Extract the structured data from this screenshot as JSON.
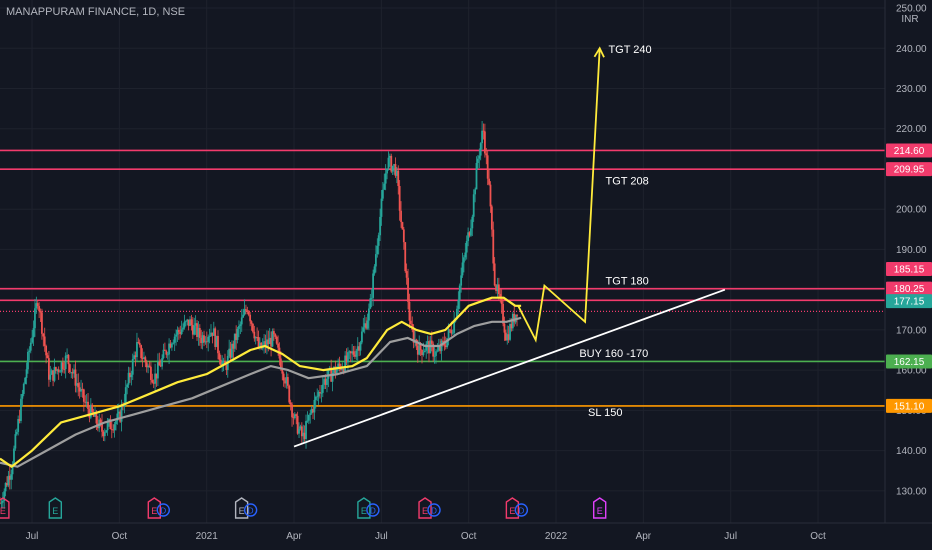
{
  "header": {
    "title": "MANAPPURAM FINANCE, 1D, NSE"
  },
  "colors": {
    "background": "#131722",
    "grid": "#1e222d",
    "up": "#26a69a",
    "down": "#ef5350",
    "ema_short": "#ffeb3b",
    "ema_long": "#9e9e9e",
    "resistance": "#f23b6c",
    "support": "#4caf50",
    "stop": "#ff9800",
    "trendline": "#ffffff",
    "projection": "#ffeb3b"
  },
  "chart_data": {
    "type": "candlestick",
    "title": "MANAPPURAM FINANCE, 1D, NSE",
    "currency": "INR",
    "ylim": [
      122,
      252
    ],
    "y_ticks": [
      130,
      140,
      150,
      160,
      170,
      180,
      190,
      200,
      210,
      220,
      230,
      240,
      250
    ],
    "y_tick_labels": [
      "130.00",
      "140.00",
      "150.00",
      "160.00",
      "170.00",
      "180.00",
      "190.00",
      "200.00",
      "210.00",
      "220.00",
      "230.00",
      "240.00",
      "250.00"
    ],
    "x_ticks": [
      {
        "label": "Jul",
        "month": 6
      },
      {
        "label": "Oct",
        "month": 9
      },
      {
        "label": "2021",
        "month": 12
      },
      {
        "label": "Apr",
        "month": 15
      },
      {
        "label": "Jul",
        "month": 18
      },
      {
        "label": "Oct",
        "month": 21
      },
      {
        "label": "2022",
        "month": 24
      },
      {
        "label": "Apr",
        "month": 27
      },
      {
        "label": "Jul",
        "month": 30
      },
      {
        "label": "Oct",
        "month": 33
      }
    ],
    "x_range_months": [
      4.9,
      35.3
    ],
    "price_anchors": [
      [
        4.9,
        127
      ],
      [
        5.3,
        136
      ],
      [
        5.8,
        160
      ],
      [
        6.2,
        178
      ],
      [
        6.6,
        158
      ],
      [
        7.2,
        163
      ],
      [
        7.8,
        152
      ],
      [
        8.4,
        145
      ],
      [
        9.0,
        148
      ],
      [
        9.6,
        166
      ],
      [
        10.2,
        158
      ],
      [
        10.8,
        168
      ],
      [
        11.4,
        172
      ],
      [
        11.8,
        168
      ],
      [
        12.2,
        170
      ],
      [
        12.6,
        160
      ],
      [
        13.0,
        168
      ],
      [
        13.4,
        176
      ],
      [
        13.8,
        165
      ],
      [
        14.3,
        168
      ],
      [
        14.7,
        158
      ],
      [
        15.0,
        148
      ],
      [
        15.3,
        143
      ],
      [
        15.6,
        150
      ],
      [
        16.0,
        157
      ],
      [
        16.4,
        160
      ],
      [
        16.8,
        162
      ],
      [
        17.2,
        166
      ],
      [
        17.6,
        175
      ],
      [
        17.9,
        195
      ],
      [
        18.2,
        212
      ],
      [
        18.5,
        210
      ],
      [
        18.8,
        188
      ],
      [
        19.0,
        170
      ],
      [
        19.3,
        165
      ],
      [
        19.6,
        166
      ],
      [
        19.9,
        164
      ],
      [
        20.2,
        167
      ],
      [
        20.5,
        172
      ],
      [
        20.8,
        186
      ],
      [
        21.1,
        198
      ],
      [
        21.3,
        212
      ],
      [
        21.5,
        220
      ],
      [
        21.7,
        205
      ],
      [
        21.9,
        182
      ],
      [
        22.1,
        176
      ],
      [
        22.3,
        168
      ],
      [
        22.5,
        172
      ],
      [
        22.7,
        176
      ]
    ],
    "ema_short": [
      [
        4.9,
        138
      ],
      [
        5.3,
        136
      ],
      [
        6.0,
        140
      ],
      [
        7.0,
        147
      ],
      [
        8.0,
        149
      ],
      [
        9.0,
        151
      ],
      [
        10.0,
        154
      ],
      [
        11.0,
        157
      ],
      [
        12.0,
        159
      ],
      [
        13.0,
        163
      ],
      [
        13.5,
        165
      ],
      [
        14.0,
        166
      ],
      [
        14.6,
        164
      ],
      [
        15.2,
        161
      ],
      [
        16.0,
        160
      ],
      [
        17.0,
        161
      ],
      [
        17.5,
        163
      ],
      [
        18.2,
        170
      ],
      [
        18.7,
        172
      ],
      [
        19.2,
        170
      ],
      [
        19.7,
        169
      ],
      [
        20.2,
        170
      ],
      [
        20.6,
        173
      ],
      [
        21.0,
        176
      ],
      [
        21.4,
        177
      ],
      [
        21.8,
        178
      ],
      [
        22.2,
        178
      ],
      [
        22.6,
        176
      ],
      [
        22.8,
        176
      ]
    ],
    "ema_long": [
      [
        4.9,
        137
      ],
      [
        5.5,
        136
      ],
      [
        6.5,
        140
      ],
      [
        7.5,
        144
      ],
      [
        8.5,
        147
      ],
      [
        9.5,
        149
      ],
      [
        10.5,
        151
      ],
      [
        11.5,
        153
      ],
      [
        12.5,
        156
      ],
      [
        13.5,
        159
      ],
      [
        14.2,
        161
      ],
      [
        14.8,
        160
      ],
      [
        15.5,
        158
      ],
      [
        16.5,
        159
      ],
      [
        17.5,
        161
      ],
      [
        18.3,
        167
      ],
      [
        18.9,
        168
      ],
      [
        19.5,
        166
      ],
      [
        20.0,
        166
      ],
      [
        20.6,
        169
      ],
      [
        21.2,
        171
      ],
      [
        21.8,
        172
      ],
      [
        22.3,
        172
      ],
      [
        22.8,
        173
      ]
    ],
    "levels": [
      {
        "value": 214.6,
        "label": "214.60",
        "kind": "resistance",
        "end_month": 35.3
      },
      {
        "value": 209.95,
        "label": "209.95",
        "kind": "resistance",
        "end_month": 35.3
      },
      {
        "value": 180.25,
        "label": "180.25",
        "kind": "resistance",
        "end_month": 35.3
      },
      {
        "value": 177.35,
        "label": "177.35",
        "kind": "resistance",
        "end_month": 35.3
      },
      {
        "value": 174.6,
        "label": "",
        "kind": "resistance-dotted",
        "end_month": 35.3
      },
      {
        "value": 162.15,
        "label": "162.15",
        "kind": "support",
        "end_month": 35.3
      },
      {
        "value": 151.1,
        "label": "151.10",
        "kind": "stop",
        "end_month": 35.3
      }
    ],
    "price_tags": [
      {
        "value": 185.15,
        "label": "185.15",
        "color": "#f23b6c"
      },
      {
        "value": 177.15,
        "label": "177.15",
        "color": "#26a69a"
      }
    ],
    "trendline": [
      [
        15.0,
        141
      ],
      [
        29.8,
        180
      ]
    ],
    "projection_path": [
      [
        22.7,
        176
      ],
      [
        23.3,
        167.5
      ],
      [
        23.6,
        181
      ],
      [
        25.0,
        172
      ],
      [
        25.5,
        240
      ]
    ],
    "annotations": [
      {
        "text": "TGT 240",
        "x": 25.8,
        "y": 238.8
      },
      {
        "text": "TGT 208",
        "x": 25.7,
        "y": 206.2
      },
      {
        "text": "TGT 180",
        "x": 25.7,
        "y": 181.3
      },
      {
        "text": "BUY 160 -170",
        "x": 24.8,
        "y": 163.2
      },
      {
        "text": "SL 150",
        "x": 25.1,
        "y": 148.6
      }
    ],
    "events": [
      {
        "month": 5.0,
        "kind": "E",
        "color": "#f23b6c"
      },
      {
        "month": 6.8,
        "kind": "E",
        "color": "#26a69a"
      },
      {
        "month": 10.2,
        "kind": "E",
        "color": "#f23b6c",
        "dividend": true
      },
      {
        "month": 13.2,
        "kind": "E",
        "color": "#b2b5be",
        "dividend": true
      },
      {
        "month": 17.4,
        "kind": "E",
        "color": "#26a69a",
        "dividend": true
      },
      {
        "month": 19.5,
        "kind": "E",
        "color": "#f23b6c",
        "dividend": true
      },
      {
        "month": 22.5,
        "kind": "E",
        "color": "#f23b6c",
        "dividend": true
      },
      {
        "month": 25.5,
        "kind": "E",
        "color": "#e040fb"
      }
    ]
  }
}
